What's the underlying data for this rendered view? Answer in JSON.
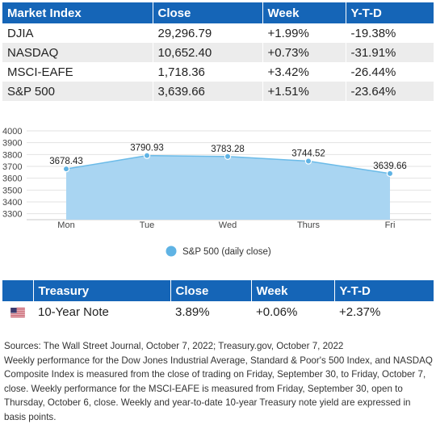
{
  "market_table": {
    "headers": [
      "Market Index",
      "Close",
      "Week",
      "Y-T-D"
    ],
    "rows": [
      [
        "DJIA",
        "29,296.79",
        "+1.99%",
        "-19.38%"
      ],
      [
        "NASDAQ",
        "10,652.40",
        "+0.73%",
        "-31.91%"
      ],
      [
        "MSCI-EAFE",
        "1,718.36",
        "+3.42%",
        "-26.44%"
      ],
      [
        "S&P 500",
        "3,639.66",
        "+1.51%",
        "-23.64%"
      ]
    ]
  },
  "chart_data": {
    "type": "area",
    "categories": [
      "Mon",
      "Tue",
      "Wed",
      "Thurs",
      "Fri"
    ],
    "series": [
      {
        "name": "S&P 500 (daily close)",
        "values": [
          3678.43,
          3790.93,
          3783.28,
          3744.52,
          3639.66
        ],
        "labels": [
          "3678.43",
          "3790.93",
          "3783.28",
          "3744.52",
          "3639.66"
        ]
      }
    ],
    "y_ticks": [
      3300,
      3400,
      3500,
      3600,
      3700,
      3800,
      3900,
      4000
    ],
    "ylim": [
      3250,
      4000
    ],
    "grid": true,
    "legend_position": "bottom-center",
    "colors": {
      "fill": "#a9d5f2",
      "line": "#6bbbe8",
      "marker": "#5fb3e4",
      "grid": "#e2e2e2"
    }
  },
  "treasury_table": {
    "headers": [
      "",
      "Treasury",
      "Close",
      "Week",
      "Y-T-D"
    ],
    "row": {
      "flag": "us-flag-icon",
      "name": "10-Year Note",
      "close": "3.89%",
      "week": "+0.06%",
      "ytd": "+2.37%"
    }
  },
  "notes": [
    "Sources: The Wall Street Journal, October 7, 2022; Treasury.gov, October 7, 2022",
    "Weekly performance for the Dow Jones Industrial Average, Standard & Poor's 500 Index, and NASDAQ Composite Index is measured from the close of trading on Friday, September 30, to Friday, October 7, close. Weekly performance for the MSCI-EAFE is measured from Friday, September 30, open to Thursday, October 6, close. Weekly and year-to-date 10-year Treasury note yield are expressed in basis points."
  ],
  "colors": {
    "header": "#1565b7",
    "stripe": "#ececec"
  }
}
